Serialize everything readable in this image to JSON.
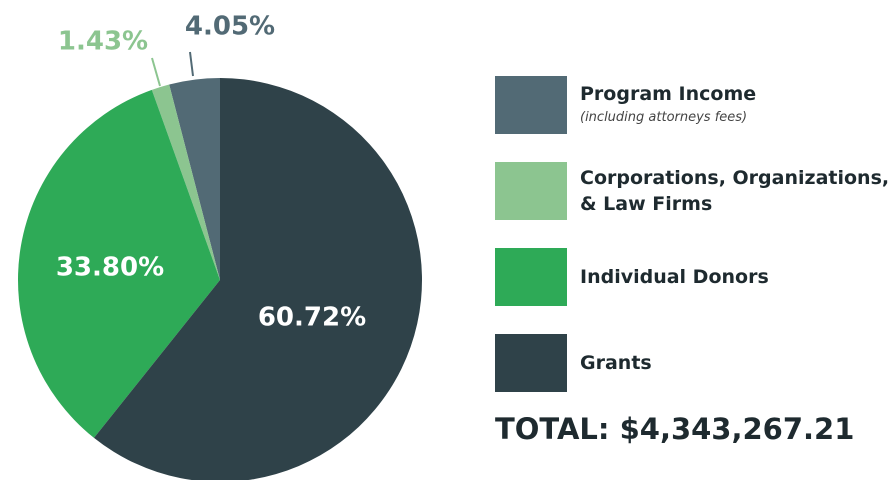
{
  "chart_data": {
    "type": "pie",
    "categories": [
      "Program Income",
      "Corporations, Organizations, & Law Firms",
      "Individual Donors",
      "Grants"
    ],
    "category_notes": [
      "(including attorneys fees)",
      null,
      null,
      null
    ],
    "values": [
      4.05,
      1.43,
      33.8,
      60.72
    ],
    "value_labels": [
      "4.05%",
      "1.43%",
      "33.80%",
      "60.72%"
    ],
    "colors": [
      "#526a75",
      "#8cc590",
      "#2eaa57",
      "#2f4249"
    ],
    "total_label": "TOTAL: $4,343,267.21"
  }
}
